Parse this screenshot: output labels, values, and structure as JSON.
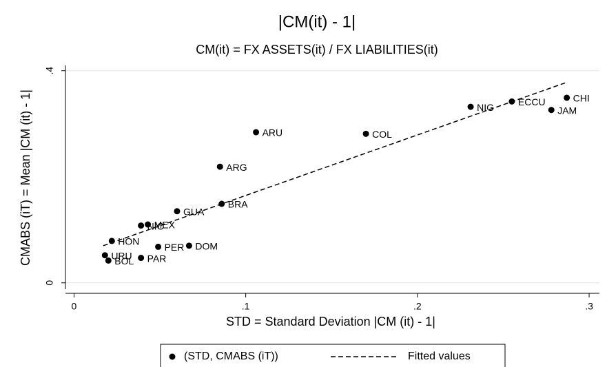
{
  "chart_data": {
    "type": "scatter",
    "title": "|CM(it) - 1|",
    "subtitle": "CM(it) = FX ASSETS(it) / FX LIABILITIES(it)",
    "x_label": "STD = Standard Deviation |CM (it) - 1|",
    "y_label": "CMABS (iT) = Mean |CM (it) - 1|",
    "xlim": [
      -0.005,
      0.306
    ],
    "ylim": [
      -0.012,
      0.41
    ],
    "xticks": [
      0,
      {
        "value": 0.1,
        "label": ".1"
      },
      {
        "value": 0.2,
        "label": ".2"
      },
      {
        "value": 0.3,
        "label": ".3"
      }
    ],
    "yticks": [
      0,
      {
        "value": 0.4,
        "label": ".4"
      }
    ],
    "grid": true,
    "series": [
      {
        "name": "(STD, CMABS (iT))",
        "mode": "markers",
        "color": "#000000",
        "labels": [
          "CHI",
          "JAM",
          "ECCU",
          "NIG",
          "COL",
          "ARU",
          "ARG",
          "BRA",
          "GUA",
          "MEX",
          "NIC",
          "DOM",
          "PER",
          "HON",
          "URU",
          "PAR",
          "BOL"
        ],
        "x": [
          0.287,
          0.278,
          0.255,
          0.231,
          0.17,
          0.106,
          0.085,
          0.086,
          0.06,
          0.043,
          0.039,
          0.067,
          0.049,
          0.022,
          0.018,
          0.039,
          0.02
        ],
        "values": [
          0.349,
          0.326,
          0.342,
          0.332,
          0.281,
          0.284,
          0.219,
          0.149,
          0.135,
          0.11,
          0.108,
          0.07,
          0.068,
          0.079,
          0.052,
          0.047,
          0.042
        ]
      },
      {
        "name": "Fitted values",
        "mode": "line",
        "dash": "dashed",
        "color": "#000000",
        "x": [
          0.017,
          0.286
        ],
        "values": [
          0.07,
          0.377
        ]
      }
    ]
  }
}
